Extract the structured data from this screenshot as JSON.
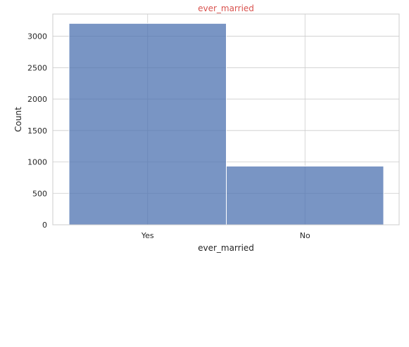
{
  "chart_data": {
    "type": "bar",
    "title": "ever_married",
    "xlabel": "ever_married",
    "ylabel": "Count",
    "categories": [
      "Yes",
      "No"
    ],
    "values": [
      3204,
      933
    ],
    "ylim": [
      0,
      3353
    ],
    "yticks": [
      0,
      500,
      1000,
      1500,
      2000,
      2500,
      3000
    ],
    "grid": true,
    "legend": "none",
    "colors": {
      "bar": "#4c72b0",
      "bar_edge": "#ffffff",
      "title": "#d9534f",
      "grid": "#cccccc",
      "axes_edge": "#cccccc"
    }
  }
}
